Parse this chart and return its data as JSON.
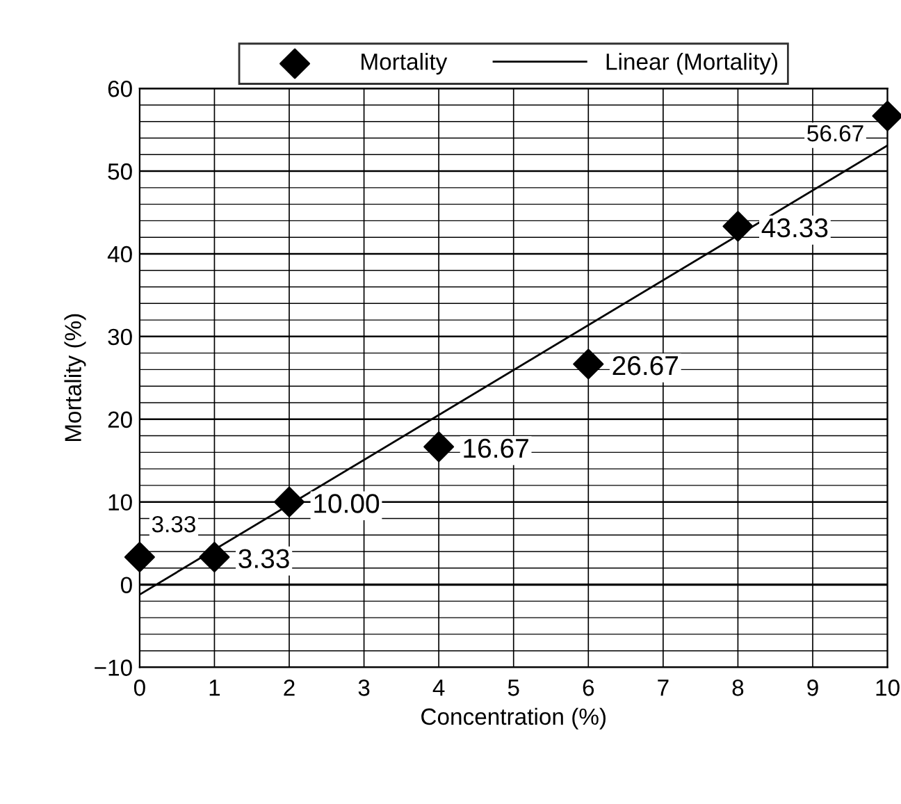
{
  "chart_data": {
    "type": "scatter",
    "xlabel": "Concentration (%)",
    "ylabel": "Mortality (%)",
    "x": [
      0,
      1,
      2,
      4,
      6,
      8,
      10
    ],
    "series": [
      {
        "name": "Mortality",
        "color": "#000000",
        "marker": "diamond",
        "values": [
          3.33,
          3.33,
          10.0,
          16.67,
          26.67,
          43.33,
          56.67
        ],
        "value_labels": [
          "3.33",
          "3.33",
          "10.00",
          "16.67",
          "26.67",
          "43.33",
          "56.67"
        ]
      },
      {
        "name": "Linear (Mortality)",
        "type": "line",
        "color": "#000000",
        "x": [
          0,
          10
        ],
        "values": [
          -1.2,
          53.1
        ],
        "line_style": "solid"
      }
    ],
    "xlim": [
      0,
      10
    ],
    "xticks": [
      0,
      1,
      2,
      3,
      4,
      5,
      6,
      7,
      8,
      9,
      10
    ],
    "ylim": [
      -10,
      60
    ],
    "yticks": [
      {
        "value": -10,
        "label": "−10"
      },
      {
        "value": -8,
        "label": null
      },
      {
        "value": -6,
        "label": null
      },
      {
        "value": -4,
        "label": null
      },
      {
        "value": -2,
        "label": null
      },
      0,
      {
        "value": 2,
        "label": null
      },
      {
        "value": 4,
        "label": null
      },
      {
        "value": 6,
        "label": null
      },
      {
        "value": 8,
        "label": null
      },
      10,
      {
        "value": 12,
        "label": null
      },
      {
        "value": 14,
        "label": null
      },
      {
        "value": 16,
        "label": null
      },
      {
        "value": 18,
        "label": null
      },
      20,
      {
        "value": 22,
        "label": null
      },
      {
        "value": 24,
        "label": null
      },
      {
        "value": 26,
        "label": null
      },
      {
        "value": 28,
        "label": null
      },
      30,
      {
        "value": 32,
        "label": null
      },
      {
        "value": 34,
        "label": null
      },
      {
        "value": 36,
        "label": null
      },
      {
        "value": 38,
        "label": null
      },
      40,
      {
        "value": 42,
        "label": null
      },
      {
        "value": 44,
        "label": null
      },
      {
        "value": 46,
        "label": null
      },
      {
        "value": 48,
        "label": null
      },
      50,
      {
        "value": 52,
        "label": null
      },
      {
        "value": 54,
        "label": null
      },
      {
        "value": 56,
        "label": null
      },
      {
        "value": 58,
        "label": null
      },
      60
    ],
    "grid": true,
    "legend": "top"
  }
}
